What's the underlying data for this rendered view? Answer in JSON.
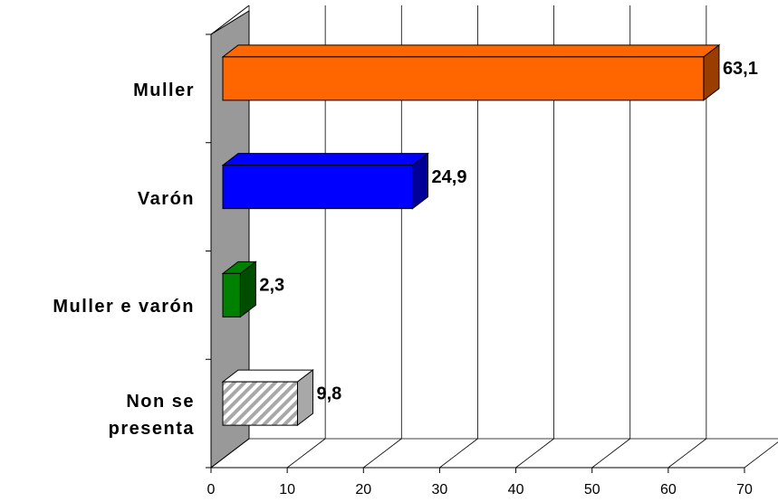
{
  "chart_data": {
    "type": "bar3d_horizontal",
    "categories": [
      "Muller",
      "Varón",
      "Muller e varón",
      "Non se\npresenta"
    ],
    "values": [
      63.1,
      24.9,
      2.3,
      9.8
    ],
    "value_labels": [
      "63,1",
      "24,9",
      "2,3",
      "9,8"
    ],
    "colors": [
      "#ff6600",
      "#0000ff",
      "#008000",
      "#a8a8a8"
    ],
    "hatched": [
      false,
      false,
      false,
      true
    ],
    "xlim": [
      0,
      70
    ],
    "xticks": [
      0,
      10,
      20,
      30,
      40,
      50,
      60,
      70
    ],
    "grid": true
  }
}
